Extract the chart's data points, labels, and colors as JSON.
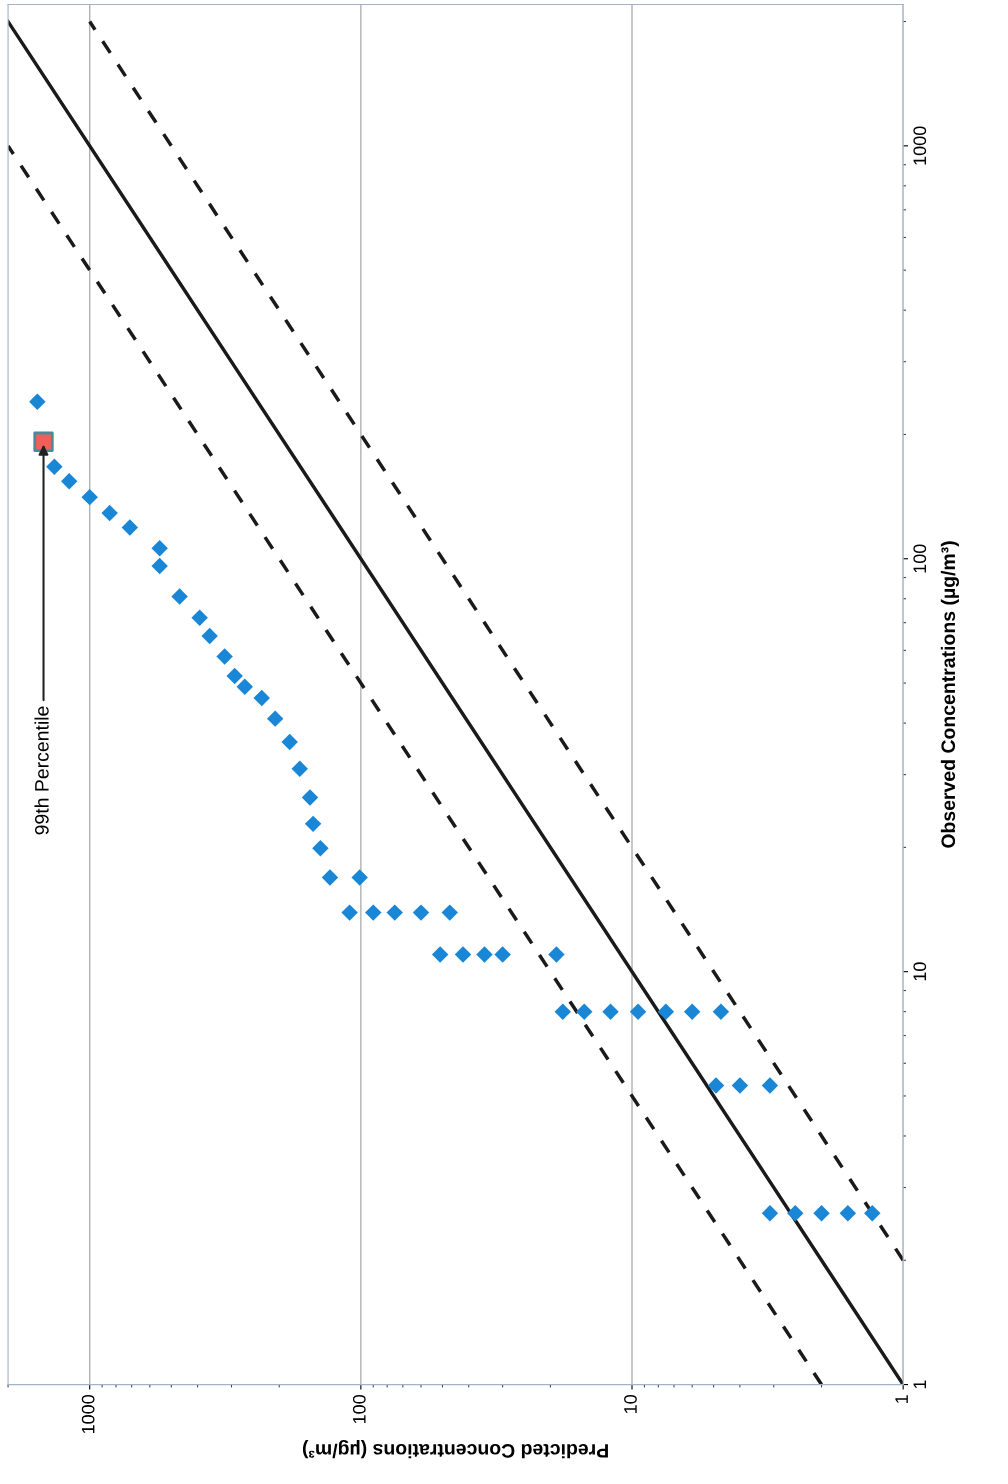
{
  "chart_data": {
    "type": "scatter",
    "xlabel": "Predicted Concentrations (µg/m³)",
    "ylabel": "Observed Concentrations (µg/m³)",
    "log": "xy",
    "xlim": [
      2000,
      1
    ],
    "xticks": [
      1000,
      100,
      10,
      1
    ],
    "ylim": [
      1,
      2200
    ],
    "yticks": [
      1,
      10,
      100,
      1000
    ],
    "grid": "x",
    "annotations": [
      {
        "text": "99th Percentile",
        "x": 1480,
        "y": 192
      }
    ],
    "series": [
      {
        "type": "line",
        "color": "#1a1a1a",
        "line_style": "solid",
        "marker": "none",
        "x": [
          1,
          2000
        ],
        "values": [
          1,
          2000
        ]
      },
      {
        "type": "line",
        "color": "#1a1a1a",
        "line_style": "dashed",
        "marker": "none",
        "x": [
          2,
          2000
        ],
        "values": [
          1,
          1000
        ]
      },
      {
        "type": "line",
        "color": "#1a1a1a",
        "line_style": "dashed",
        "marker": "none",
        "x": [
          1,
          1000
        ],
        "values": [
          2,
          2000
        ]
      },
      {
        "color": "#1a86d6",
        "marker": "diamond",
        "x": [
          3.1,
          2.5,
          2.0,
          1.6,
          1.3,
          4.9,
          4.0,
          3.1,
          18,
          15,
          12,
          9.5,
          7.5,
          6,
          4.7,
          51,
          42,
          35,
          30,
          19,
          110,
          90,
          75,
          60,
          47,
          130,
          101,
          141,
          150,
          154,
          168,
          183,
          207,
          232,
          268,
          292,
          318,
          361,
          393,
          466,
          552,
          552,
          711,
          844,
          1000,
          1190,
          1350,
          1560
        ],
        "values": [
          2.6,
          2.6,
          2.6,
          2.6,
          2.6,
          5.3,
          5.3,
          5.3,
          8.0,
          8.0,
          8.0,
          8.0,
          8.0,
          8.0,
          8.0,
          11,
          11,
          11,
          11,
          11,
          13.9,
          13.9,
          13.9,
          13.9,
          13.9,
          16.9,
          16.9,
          19.9,
          22.8,
          26.4,
          31,
          36,
          41,
          46,
          49,
          52,
          58,
          65,
          72,
          81,
          96,
          106,
          119,
          129,
          141,
          154,
          167,
          240
        ]
      },
      {
        "color": "#f0605a",
        "marker": "square",
        "x": [
          1480
        ],
        "values": [
          192
        ]
      }
    ]
  }
}
